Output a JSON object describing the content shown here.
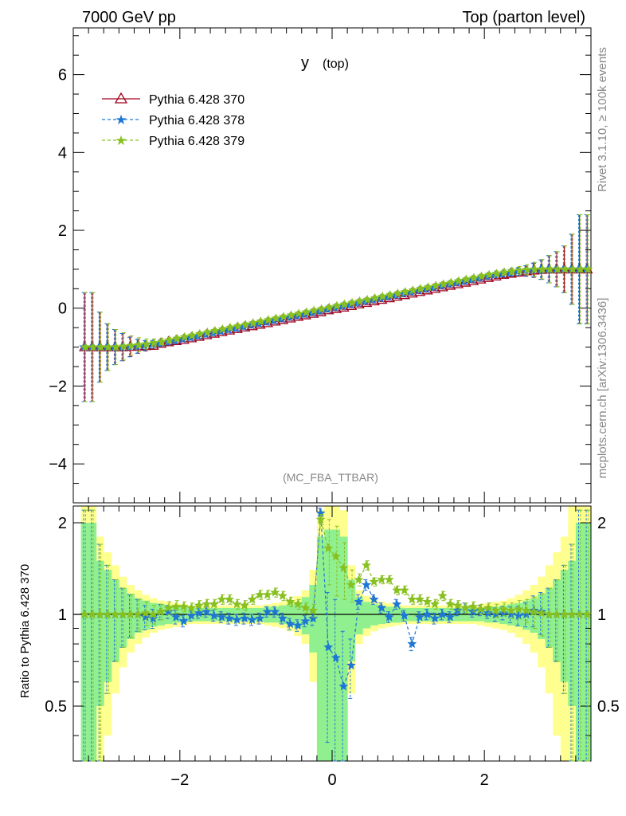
{
  "header": {
    "left": "7000 GeV pp",
    "right": "Top (parton level)"
  },
  "plot_title": {
    "main": "y",
    "sub": "(top)"
  },
  "analysis_tag": "(MC_FBA_TTBAR)",
  "side_text": {
    "rivet": "Rivet 3.1.10, ≥ 100k events",
    "site": "mcplots.cern.ch [arXiv:1306.3436]"
  },
  "colors": {
    "s370": "#a0001c",
    "s378": "#1f77d4",
    "s379": "#88c020",
    "band_green": "#90f090",
    "band_yellow": "#ffff90"
  },
  "chart_data": [
    {
      "type": "line",
      "panel": "main",
      "title": "y (top)",
      "xlim": [
        -3.4,
        3.4
      ],
      "ylim": [
        -5,
        7.2
      ],
      "yticks": [
        -4,
        -2,
        0,
        2,
        4,
        6
      ],
      "yticklabels": [
        "−4",
        "−2",
        "0",
        "2",
        "4",
        "6"
      ],
      "legend_position": "top-left",
      "x": [
        -3.25,
        -3.15,
        -3.05,
        -2.95,
        -2.85,
        -2.75,
        -2.65,
        -2.55,
        -2.45,
        -2.35,
        -2.25,
        -2.15,
        -2.05,
        -1.95,
        -1.85,
        -1.75,
        -1.65,
        -1.55,
        -1.45,
        -1.35,
        -1.25,
        -1.15,
        -1.05,
        -0.95,
        -0.85,
        -0.75,
        -0.65,
        -0.55,
        -0.45,
        -0.35,
        -0.25,
        -0.15,
        -0.05,
        0.05,
        0.15,
        0.25,
        0.35,
        0.45,
        0.55,
        0.65,
        0.75,
        0.85,
        0.95,
        1.05,
        1.15,
        1.25,
        1.35,
        1.45,
        1.55,
        1.65,
        1.75,
        1.85,
        1.95,
        2.05,
        2.15,
        2.25,
        2.35,
        2.45,
        2.55,
        2.65,
        2.75,
        2.85,
        2.95,
        3.05,
        3.15,
        3.25,
        3.35
      ],
      "series": [
        {
          "name": "Pythia 6.428 370",
          "values": [
            -1.0,
            -1.0,
            -1.0,
            -1.0,
            -1.0,
            -1.0,
            -0.99,
            -0.98,
            -0.97,
            -0.96,
            -0.91,
            -0.87,
            -0.84,
            -0.81,
            -0.77,
            -0.73,
            -0.69,
            -0.65,
            -0.61,
            -0.57,
            -0.53,
            -0.49,
            -0.46,
            -0.42,
            -0.38,
            -0.34,
            -0.3,
            -0.26,
            -0.22,
            -0.18,
            -0.14,
            -0.1,
            -0.05,
            -0.02,
            0.02,
            0.06,
            0.1,
            0.14,
            0.18,
            0.22,
            0.26,
            0.3,
            0.34,
            0.38,
            0.42,
            0.46,
            0.5,
            0.54,
            0.58,
            0.62,
            0.66,
            0.7,
            0.74,
            0.78,
            0.82,
            0.86,
            0.89,
            0.92,
            0.95,
            0.97,
            0.99,
            1.0,
            1.0,
            1.0,
            1.0,
            1.0,
            1.0
          ]
        },
        {
          "name": "Pythia 6.428 378",
          "values": [
            -1.0,
            -1.0,
            -1.0,
            -1.0,
            -1.0,
            -1.0,
            -1.0,
            -0.98,
            -0.96,
            -0.93,
            -0.9,
            -0.87,
            -0.84,
            -0.8,
            -0.76,
            -0.72,
            -0.68,
            -0.64,
            -0.6,
            -0.56,
            -0.52,
            -0.48,
            -0.44,
            -0.4,
            -0.36,
            -0.32,
            -0.28,
            -0.24,
            -0.2,
            -0.16,
            -0.12,
            -0.08,
            -0.03,
            0.01,
            0.05,
            0.09,
            0.13,
            0.17,
            0.21,
            0.25,
            0.29,
            0.33,
            0.37,
            0.41,
            0.45,
            0.49,
            0.53,
            0.57,
            0.61,
            0.65,
            0.69,
            0.73,
            0.77,
            0.81,
            0.85,
            0.88,
            0.91,
            0.94,
            0.96,
            0.98,
            0.99,
            1.0,
            1.0,
            1.0,
            1.0,
            1.0,
            1.0
          ]
        },
        {
          "name": "Pythia 6.428 379",
          "values": [
            -1.0,
            -1.0,
            -1.0,
            -1.0,
            -1.0,
            -0.98,
            -0.96,
            -0.94,
            -0.92,
            -0.89,
            -0.86,
            -0.82,
            -0.78,
            -0.74,
            -0.7,
            -0.66,
            -0.62,
            -0.58,
            -0.54,
            -0.5,
            -0.46,
            -0.42,
            -0.38,
            -0.34,
            -0.3,
            -0.26,
            -0.22,
            -0.18,
            -0.14,
            -0.1,
            -0.06,
            -0.02,
            0.02,
            0.06,
            0.1,
            0.14,
            0.18,
            0.22,
            0.26,
            0.3,
            0.34,
            0.38,
            0.42,
            0.46,
            0.5,
            0.54,
            0.58,
            0.62,
            0.66,
            0.7,
            0.74,
            0.78,
            0.82,
            0.86,
            0.89,
            0.92,
            0.95,
            0.97,
            0.99,
            1.0,
            1.0,
            1.0,
            1.0,
            1.0,
            1.0,
            1.0,
            1.0
          ]
        }
      ],
      "errors": [
        1.4,
        1.4,
        0.9,
        0.6,
        0.45,
        0.35,
        0.25,
        0.18,
        0.13,
        0.1,
        0.08,
        0.07,
        0.06,
        0.05,
        0.05,
        0.05,
        0.05,
        0.05,
        0.05,
        0.05,
        0.05,
        0.05,
        0.05,
        0.05,
        0.05,
        0.05,
        0.05,
        0.05,
        0.05,
        0.05,
        0.05,
        0.05,
        0.05,
        0.05,
        0.05,
        0.05,
        0.05,
        0.05,
        0.05,
        0.05,
        0.05,
        0.05,
        0.05,
        0.05,
        0.05,
        0.05,
        0.05,
        0.05,
        0.05,
        0.05,
        0.05,
        0.05,
        0.05,
        0.05,
        0.06,
        0.07,
        0.08,
        0.1,
        0.13,
        0.18,
        0.25,
        0.35,
        0.45,
        0.6,
        0.9,
        1.4,
        1.4
      ]
    },
    {
      "type": "line",
      "panel": "ratio",
      "ylabel": "Ratio to Pythia 6.428 370",
      "xlim": [
        -3.4,
        3.4
      ],
      "ylim": [
        0.33,
        2.27
      ],
      "yticks": [
        0.5,
        1,
        2
      ],
      "yticklabels": [
        "0.5",
        "1",
        "2"
      ],
      "xticks": [
        -2,
        0,
        2
      ],
      "xticklabels": [
        "−2",
        "0",
        "2"
      ],
      "x": [
        -3.25,
        -3.15,
        -3.05,
        -2.95,
        -2.85,
        -2.75,
        -2.65,
        -2.55,
        -2.45,
        -2.35,
        -2.25,
        -2.15,
        -2.05,
        -1.95,
        -1.85,
        -1.75,
        -1.65,
        -1.55,
        -1.45,
        -1.35,
        -1.25,
        -1.15,
        -1.05,
        -0.95,
        -0.85,
        -0.75,
        -0.65,
        -0.55,
        -0.45,
        -0.35,
        -0.25,
        -0.15,
        -0.05,
        0.05,
        0.15,
        0.25,
        0.35,
        0.45,
        0.55,
        0.65,
        0.75,
        0.85,
        0.95,
        1.05,
        1.15,
        1.25,
        1.35,
        1.45,
        1.55,
        1.65,
        1.75,
        1.85,
        1.95,
        2.05,
        2.15,
        2.25,
        2.35,
        2.45,
        2.55,
        2.65,
        2.75,
        2.85,
        2.95,
        3.05,
        3.15,
        3.25,
        3.35
      ],
      "series": [
        {
          "name": "Pythia 6.428 378",
          "values": [
            1.0,
            1.0,
            1.0,
            1.0,
            1.0,
            1.0,
            1.0,
            1.0,
            0.98,
            0.97,
            1.02,
            1.02,
            0.98,
            0.95,
            0.99,
            1.01,
            1.02,
            0.99,
            0.98,
            0.97,
            0.96,
            0.97,
            0.96,
            0.97,
            1.02,
            1.02,
            0.97,
            0.93,
            0.92,
            0.95,
            0.97,
            2.15,
            0.78,
            0.72,
            0.58,
            0.68,
            1.1,
            1.25,
            1.12,
            1.05,
            0.98,
            1.08,
            0.99,
            0.8,
            0.98,
            1.0,
            0.97,
            1.0,
            0.98,
            1.03,
            1.05,
            1.02,
            1.03,
            1.01,
            1.0,
            1.01,
            1.0,
            0.99,
            1.0,
            1.03,
            1.02,
            1.0,
            1.0,
            1.0,
            1.0,
            1.0,
            1.0
          ]
        },
        {
          "name": "Pythia 6.428 379",
          "values": [
            1.0,
            1.0,
            1.0,
            1.0,
            1.0,
            1.0,
            1.0,
            1.0,
            1.01,
            1.0,
            1.02,
            1.05,
            1.06,
            1.06,
            1.05,
            1.07,
            1.08,
            1.08,
            1.12,
            1.12,
            1.08,
            1.07,
            1.12,
            1.16,
            1.16,
            1.18,
            1.15,
            1.1,
            1.08,
            1.05,
            1.03,
            2.05,
            1.65,
            1.55,
            1.42,
            1.25,
            1.3,
            1.45,
            1.28,
            1.3,
            1.3,
            1.2,
            1.2,
            1.12,
            1.12,
            1.1,
            1.08,
            1.15,
            1.08,
            1.07,
            1.05,
            1.06,
            1.04,
            1.05,
            1.03,
            1.04,
            1.03,
            1.04,
            1.03,
            1.02,
            1.01,
            1.0,
            1.0,
            1.0,
            1.0,
            1.0,
            1.0
          ]
        }
      ],
      "errors": [
        1.2,
        1.2,
        0.7,
        0.45,
        0.3,
        0.22,
        0.16,
        0.12,
        0.09,
        0.07,
        0.06,
        0.05,
        0.05,
        0.04,
        0.04,
        0.04,
        0.04,
        0.04,
        0.04,
        0.04,
        0.04,
        0.04,
        0.04,
        0.04,
        0.04,
        0.04,
        0.04,
        0.04,
        0.04,
        0.04,
        0.05,
        0.08,
        0.4,
        0.4,
        0.3,
        0.15,
        0.06,
        0.05,
        0.04,
        0.04,
        0.04,
        0.04,
        0.04,
        0.04,
        0.04,
        0.04,
        0.04,
        0.04,
        0.04,
        0.04,
        0.04,
        0.04,
        0.04,
        0.04,
        0.05,
        0.05,
        0.06,
        0.07,
        0.09,
        0.12,
        0.16,
        0.22,
        0.3,
        0.45,
        0.7,
        1.2,
        1.2
      ],
      "band_green_halfwidth": [
        1.0,
        1.0,
        0.5,
        0.4,
        0.3,
        0.22,
        0.17,
        0.13,
        0.11,
        0.09,
        0.08,
        0.07,
        0.06,
        0.06,
        0.05,
        0.05,
        0.05,
        0.05,
        0.05,
        0.05,
        0.05,
        0.05,
        0.05,
        0.05,
        0.06,
        0.06,
        0.07,
        0.08,
        0.1,
        0.14,
        0.25,
        0.8,
        0.9,
        0.9,
        0.8,
        0.3,
        0.14,
        0.1,
        0.08,
        0.07,
        0.06,
        0.06,
        0.05,
        0.05,
        0.05,
        0.05,
        0.05,
        0.05,
        0.05,
        0.05,
        0.05,
        0.05,
        0.05,
        0.06,
        0.06,
        0.07,
        0.08,
        0.09,
        0.11,
        0.13,
        0.17,
        0.22,
        0.3,
        0.4,
        0.5,
        1.0,
        1.0
      ],
      "band_yellow_halfwidth": [
        1.5,
        1.5,
        0.8,
        0.6,
        0.45,
        0.33,
        0.25,
        0.2,
        0.16,
        0.13,
        0.11,
        0.1,
        0.09,
        0.08,
        0.07,
        0.07,
        0.07,
        0.07,
        0.07,
        0.07,
        0.07,
        0.07,
        0.07,
        0.07,
        0.08,
        0.09,
        0.1,
        0.12,
        0.15,
        0.2,
        0.4,
        1.2,
        1.3,
        1.3,
        1.2,
        0.45,
        0.2,
        0.15,
        0.12,
        0.1,
        0.09,
        0.08,
        0.07,
        0.07,
        0.07,
        0.07,
        0.07,
        0.07,
        0.07,
        0.07,
        0.07,
        0.07,
        0.08,
        0.09,
        0.1,
        0.11,
        0.13,
        0.16,
        0.2,
        0.25,
        0.33,
        0.45,
        0.6,
        0.8,
        1.5,
        1.5,
        1.5
      ]
    }
  ]
}
